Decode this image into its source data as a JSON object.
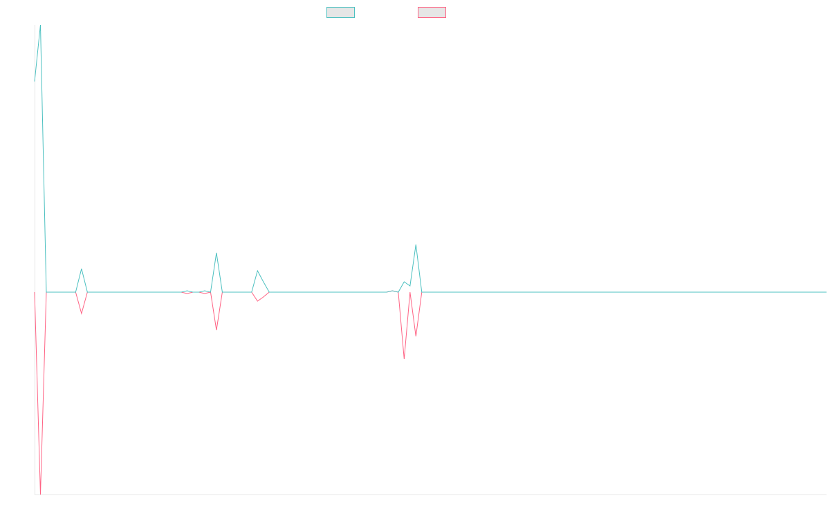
{
  "chart_data": {
    "type": "line",
    "ylim": [
      -293,
      387
    ],
    "series": [
      {
        "color": "#4bc0c0",
        "values": [
          305,
          387,
          0,
          0,
          0,
          0,
          0,
          0,
          34,
          0,
          0,
          0,
          0,
          0,
          0,
          0,
          0,
          0,
          0,
          0,
          0,
          0,
          0,
          0,
          0,
          0,
          2,
          0,
          0,
          2,
          0,
          57,
          0,
          0,
          0,
          0,
          0,
          0,
          31,
          15,
          0,
          0,
          0,
          0,
          0,
          0,
          0,
          0,
          0,
          0,
          0,
          0,
          0,
          0,
          0,
          0,
          0,
          0,
          0,
          0,
          0,
          2,
          0,
          15,
          9,
          69,
          0,
          0,
          0,
          0,
          0,
          0,
          0,
          0,
          0,
          0,
          0,
          0,
          0,
          0,
          0,
          0,
          0,
          0,
          0,
          0,
          0,
          0,
          0,
          0,
          0,
          0,
          0,
          0,
          0,
          0,
          0,
          0,
          0,
          0,
          0,
          0,
          0,
          0,
          0,
          0,
          0,
          0,
          0,
          0,
          0,
          0,
          0,
          0,
          0,
          0,
          0,
          0,
          0,
          0,
          0,
          0,
          0,
          0,
          0,
          0,
          0,
          0,
          0,
          0,
          0,
          0,
          0,
          0,
          0,
          0
        ]
      },
      {
        "color": "#ff6384",
        "values": [
          0,
          -293,
          0,
          0,
          0,
          0,
          0,
          0,
          -31,
          0,
          0,
          0,
          0,
          0,
          0,
          0,
          0,
          0,
          0,
          0,
          0,
          0,
          0,
          0,
          0,
          0,
          -2,
          0,
          0,
          -2,
          0,
          -55,
          0,
          0,
          0,
          0,
          0,
          0,
          -13,
          -7,
          0,
          0,
          0,
          0,
          0,
          0,
          0,
          0,
          0,
          0,
          0,
          0,
          0,
          0,
          0,
          0,
          0,
          0,
          0,
          0,
          0,
          2,
          0,
          -97,
          0,
          -64,
          0,
          0,
          0,
          0,
          0,
          0,
          0,
          0,
          0,
          0,
          0,
          0,
          0,
          0,
          0,
          0,
          0,
          0,
          0,
          0,
          0,
          0,
          0,
          0,
          0,
          0,
          0,
          0,
          0,
          0,
          0,
          0,
          0,
          0,
          0,
          0,
          0,
          0,
          0,
          0,
          0,
          0,
          0,
          0,
          0,
          0,
          0,
          0,
          0,
          0,
          0,
          0,
          0,
          0,
          0,
          0,
          0,
          0,
          0,
          0,
          0,
          0,
          0,
          0,
          0,
          0,
          0,
          0,
          0,
          0
        ]
      }
    ]
  }
}
